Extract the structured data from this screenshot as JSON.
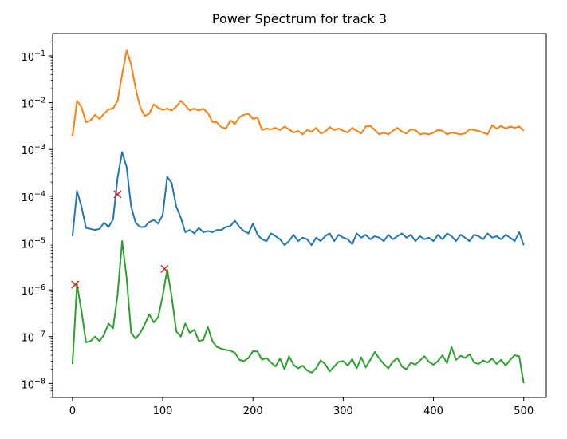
{
  "chart_data": {
    "type": "line",
    "title": "Power Spectrum for track 3",
    "xlabel": "",
    "ylabel": "",
    "xscale": "linear",
    "yscale": "log",
    "xlim": [
      -22,
      525
    ],
    "ylim": [
      5e-09,
      0.3
    ],
    "xticks": [
      0,
      100,
      200,
      300,
      400,
      500
    ],
    "xtick_labels": [
      "0",
      "100",
      "200",
      "300",
      "400",
      "500"
    ],
    "yticks": [
      1e-08,
      1e-07,
      1e-06,
      1e-05,
      0.0001,
      0.001,
      0.01,
      0.1
    ],
    "ytick_mantissa": [
      "10",
      "10",
      "10",
      "10",
      "10",
      "10",
      "10",
      "10"
    ],
    "ytick_exponents": [
      "−8",
      "−7",
      "−6",
      "−5",
      "−4",
      "−3",
      "−2",
      "−1"
    ],
    "grid": false,
    "legend": "none",
    "series": [
      {
        "color": "#ff7f0e",
        "x": [
          0,
          5,
          10,
          15,
          20,
          25,
          30,
          35,
          40,
          45,
          50,
          55,
          60,
          65,
          70,
          75,
          80,
          85,
          90,
          95,
          100,
          105,
          110,
          115,
          120,
          125,
          130,
          135,
          140,
          145,
          150,
          155,
          160,
          165,
          170,
          175,
          180,
          185,
          190,
          195,
          200,
          205,
          210,
          215,
          220,
          225,
          230,
          235,
          240,
          245,
          250,
          255,
          260,
          265,
          270,
          275,
          280,
          285,
          290,
          295,
          300,
          305,
          310,
          315,
          320,
          325,
          330,
          335,
          340,
          345,
          350,
          355,
          360,
          365,
          370,
          375,
          380,
          385,
          390,
          395,
          400,
          405,
          410,
          415,
          420,
          425,
          430,
          435,
          440,
          445,
          450,
          455,
          460,
          465,
          470,
          475,
          480,
          485,
          490,
          495,
          500
        ],
        "y": [
          0.0019,
          0.011,
          0.008,
          0.0038,
          0.0042,
          0.0055,
          0.0045,
          0.0058,
          0.0072,
          0.0075,
          0.011,
          0.04,
          0.13,
          0.065,
          0.02,
          0.008,
          0.0052,
          0.0058,
          0.0092,
          0.0078,
          0.007,
          0.0075,
          0.0068,
          0.0082,
          0.011,
          0.0088,
          0.0068,
          0.0075,
          0.0068,
          0.0074,
          0.006,
          0.0039,
          0.0038,
          0.003,
          0.0028,
          0.0042,
          0.0035,
          0.0049,
          0.0055,
          0.0058,
          0.0045,
          0.0048,
          0.0026,
          0.0028,
          0.0027,
          0.0029,
          0.0026,
          0.0031,
          0.0027,
          0.0023,
          0.0025,
          0.0021,
          0.0026,
          0.0024,
          0.0029,
          0.0022,
          0.0024,
          0.003,
          0.0026,
          0.0028,
          0.0025,
          0.0023,
          0.0029,
          0.0025,
          0.0022,
          0.0031,
          0.0032,
          0.0026,
          0.0021,
          0.0023,
          0.0021,
          0.0025,
          0.0029,
          0.0024,
          0.0022,
          0.0027,
          0.0026,
          0.0021,
          0.0022,
          0.0021,
          0.0023,
          0.0026,
          0.0025,
          0.0021,
          0.0023,
          0.0022,
          0.0021,
          0.0022,
          0.0027,
          0.0026,
          0.0025,
          0.0023,
          0.0021,
          0.0033,
          0.0028,
          0.0032,
          0.0028,
          0.0031,
          0.0029,
          0.0031,
          0.0025
        ]
      },
      {
        "color": "#1f77b4",
        "x": [
          0,
          5,
          10,
          15,
          20,
          25,
          30,
          35,
          40,
          45,
          50,
          55,
          60,
          65,
          70,
          75,
          80,
          85,
          90,
          95,
          100,
          105,
          110,
          115,
          120,
          125,
          130,
          135,
          140,
          145,
          150,
          155,
          160,
          165,
          170,
          175,
          180,
          185,
          190,
          195,
          200,
          205,
          210,
          215,
          220,
          225,
          230,
          235,
          240,
          245,
          250,
          255,
          260,
          265,
          270,
          275,
          280,
          285,
          290,
          295,
          300,
          305,
          310,
          315,
          320,
          325,
          330,
          335,
          340,
          345,
          350,
          355,
          360,
          365,
          370,
          375,
          380,
          385,
          390,
          395,
          400,
          405,
          410,
          415,
          420,
          425,
          430,
          435,
          440,
          445,
          450,
          455,
          460,
          465,
          470,
          475,
          480,
          485,
          490,
          495,
          500
        ],
        "y": [
          1.4e-05,
          0.00013,
          6e-05,
          2.1e-05,
          2e-05,
          1.9e-05,
          2e-05,
          2.7e-05,
          2.2e-05,
          3.2e-05,
          0.00025,
          0.00088,
          0.00042,
          6e-05,
          2.7e-05,
          2.2e-05,
          2.2e-05,
          2.8e-05,
          3.1e-05,
          2.6e-05,
          4e-05,
          0.00026,
          0.00019,
          6e-05,
          3.5e-05,
          1.7e-05,
          1.9e-05,
          1.6e-05,
          2.1e-05,
          1.7e-05,
          1.8e-05,
          1.7e-05,
          1.9e-05,
          1.9e-05,
          2.2e-05,
          2.3e-05,
          3e-05,
          2.2e-05,
          1.8e-05,
          1.6e-05,
          2.6e-05,
          1.5e-05,
          1.2e-05,
          1.1e-05,
          1.6e-05,
          1.4e-05,
          1.2e-05,
          9e-06,
          1.1e-05,
          1.5e-05,
          1.1e-05,
          1.3e-05,
          1.2e-05,
          9e-06,
          1.3e-05,
          1.1e-05,
          1.4e-05,
          1.6e-05,
          1.1e-05,
          1.5e-05,
          1.3e-05,
          1.2e-05,
          9.5e-06,
          1.6e-05,
          1.3e-05,
          1.5e-05,
          1.2e-05,
          1.4e-05,
          1.3e-05,
          1.1e-05,
          1.5e-05,
          1.2e-05,
          1.4e-05,
          1.6e-05,
          1.3e-05,
          1.5e-05,
          1.1e-05,
          1.4e-05,
          1.2e-05,
          1.3e-05,
          1.1e-05,
          1.5e-05,
          1.2e-05,
          1.6e-05,
          1.4e-05,
          1.1e-05,
          1.5e-05,
          1.3e-05,
          1.1e-05,
          1.5e-05,
          1.4e-05,
          1.2e-05,
          1.6e-05,
          1.3e-05,
          1.4e-05,
          1.2e-05,
          1.5e-05,
          1.3e-05,
          1.1e-05,
          1.7e-05,
          9e-06
        ]
      },
      {
        "color": "#2ca02c",
        "x": [
          0,
          5,
          10,
          15,
          20,
          25,
          30,
          35,
          40,
          45,
          50,
          55,
          60,
          65,
          70,
          75,
          80,
          85,
          90,
          95,
          100,
          105,
          110,
          115,
          120,
          125,
          130,
          135,
          140,
          145,
          150,
          155,
          160,
          165,
          170,
          175,
          180,
          185,
          190,
          195,
          200,
          205,
          210,
          215,
          220,
          225,
          230,
          235,
          240,
          245,
          250,
          255,
          260,
          265,
          270,
          275,
          280,
          285,
          290,
          295,
          300,
          305,
          310,
          315,
          320,
          325,
          330,
          335,
          340,
          345,
          350,
          355,
          360,
          365,
          370,
          375,
          380,
          385,
          390,
          395,
          400,
          405,
          410,
          415,
          420,
          425,
          430,
          435,
          440,
          445,
          450,
          455,
          460,
          465,
          470,
          475,
          480,
          485,
          490,
          495,
          500
        ],
        "y": [
          2.6e-08,
          1.3e-06,
          3.5e-07,
          7.5e-08,
          8e-08,
          1e-07,
          8e-08,
          1.1e-07,
          1.9e-07,
          1.5e-07,
          8e-07,
          1.1e-05,
          1.8e-06,
          1.2e-07,
          9e-08,
          1.2e-07,
          1.8e-07,
          3e-07,
          2e-07,
          2.6e-07,
          7.5e-07,
          2.7e-06,
          7e-07,
          1.3e-07,
          1e-07,
          1.9e-07,
          1.2e-07,
          1.4e-07,
          8e-08,
          8.5e-08,
          1.6e-07,
          8e-08,
          6e-08,
          5.5e-08,
          5.2e-08,
          5e-08,
          4.5e-08,
          3.2e-08,
          3e-08,
          3.5e-08,
          4.9e-08,
          4.8e-08,
          3.2e-08,
          3.5e-08,
          2.8e-08,
          2.3e-08,
          3.4e-08,
          2e-08,
          3.8e-08,
          2.5e-08,
          2.1e-08,
          2.4e-08,
          1.9e-08,
          1.7e-08,
          2.1e-08,
          3.1e-08,
          2.6e-08,
          1.8e-08,
          2.3e-08,
          2.9e-08,
          3e-08,
          2.4e-08,
          3.3e-08,
          2.1e-08,
          3.6e-08,
          2.2e-08,
          3.2e-08,
          4.7e-08,
          3.4e-08,
          2.6e-08,
          2.1e-08,
          2.9e-08,
          3.5e-08,
          2.3e-08,
          2e-08,
          2.8e-08,
          2.5e-08,
          3.1e-08,
          3.8e-08,
          2.9e-08,
          2.5e-08,
          3e-08,
          4e-08,
          2.7e-08,
          6e-08,
          3.2e-08,
          3.9e-08,
          3.5e-08,
          4.2e-08,
          2.8e-08,
          2.6e-08,
          3.1e-08,
          2.8e-08,
          3.4e-08,
          2.6e-08,
          3.2e-08,
          2.4e-08,
          3.2e-08,
          4e-08,
          3.8e-08,
          1e-08
        ]
      }
    ],
    "markers": {
      "symbol": "x",
      "color": "#d62728",
      "points": [
        {
          "x": 3,
          "y": 1.3e-06
        },
        {
          "x": 50,
          "y": 0.00011
        },
        {
          "x": 102,
          "y": 2.8e-06
        }
      ]
    }
  }
}
